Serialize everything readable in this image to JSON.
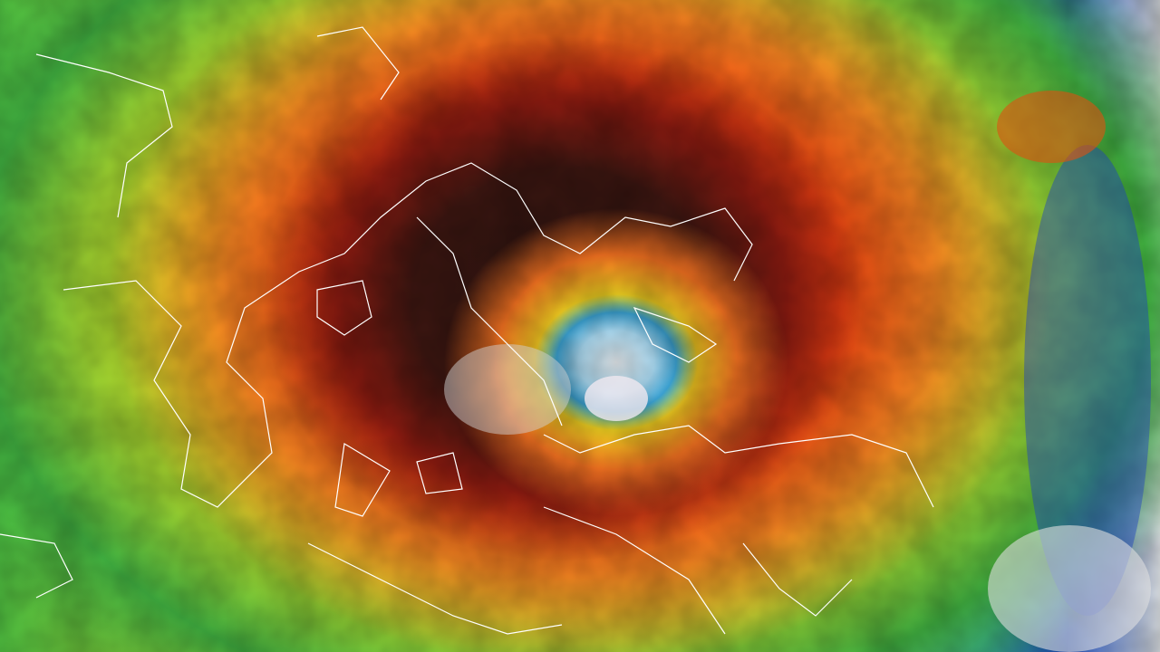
{
  "image": {
    "subject": "typhoon-satellite-infrared",
    "palette": {
      "eye": "#e8eef2",
      "core": "#2a1410",
      "inner_band": "#d02010",
      "outer_band": "#f08020",
      "yellow": "#f0e020",
      "green": "#50c040",
      "blue": "#2050c0",
      "coastline": "#ffffff"
    }
  }
}
